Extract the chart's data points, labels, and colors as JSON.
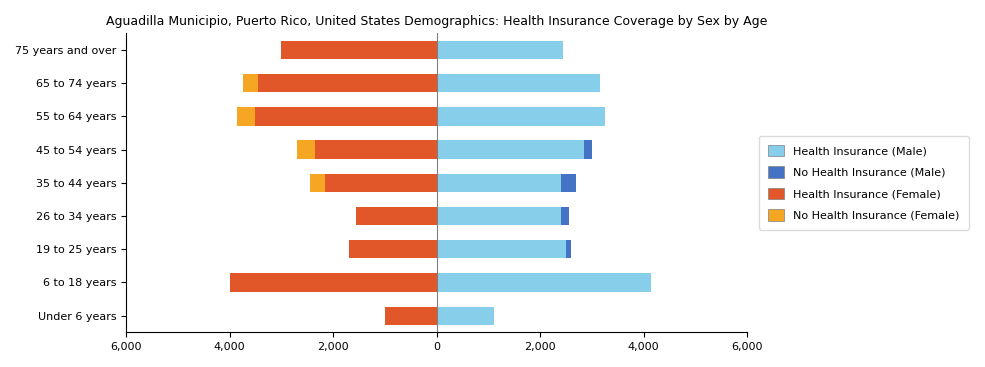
{
  "title": "Aguadilla Municipio, Puerto Rico, United States Demographics: Health Insurance Coverage by Sex by Age",
  "age_groups": [
    "Under 6 years",
    "6 to 18 years",
    "19 to 25 years",
    "26 to 34 years",
    "35 to 44 years",
    "45 to 54 years",
    "55 to 64 years",
    "65 to 74 years",
    "75 years and over"
  ],
  "health_insurance_male": [
    1100,
    4150,
    2500,
    2400,
    2400,
    2850,
    3250,
    3150,
    2450
  ],
  "no_health_insurance_male": [
    0,
    0,
    100,
    150,
    300,
    150,
    0,
    0,
    0
  ],
  "health_insurance_female": [
    1000,
    4000,
    1700,
    1550,
    2150,
    2350,
    3500,
    3450,
    3000
  ],
  "no_health_insurance_female": [
    0,
    0,
    0,
    0,
    300,
    350,
    350,
    300,
    0
  ],
  "color_health_male": "#87CEEB",
  "color_no_health_male": "#4472C4",
  "color_health_female": "#E2572A",
  "color_no_health_female": "#F5A623",
  "xlim": [
    -6000,
    6000
  ],
  "xticks": [
    -6000,
    -4000,
    -2000,
    0,
    2000,
    4000,
    6000
  ],
  "xticklabels": [
    "6,000",
    "4,000",
    "2,000",
    "0",
    "2,000",
    "4,000",
    "6,000"
  ],
  "bar_height": 0.55,
  "legend_labels": [
    "Health Insurance (Male)",
    "No Health Insurance (Male)",
    "Health Insurance (Female)",
    "No Health Insurance (Female)"
  ],
  "legend_colors": [
    "#87CEEB",
    "#4472C4",
    "#E2572A",
    "#F5A623"
  ]
}
